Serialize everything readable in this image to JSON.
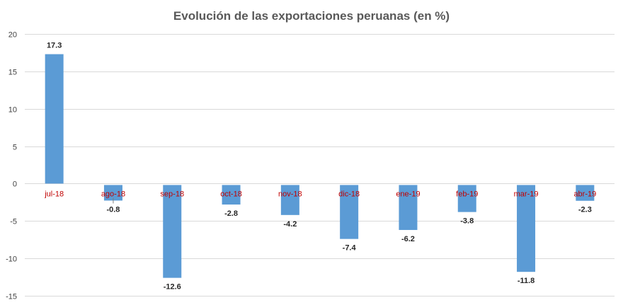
{
  "chart_data": {
    "type": "bar",
    "title": "Evolución de las exportaciones peruanas (en %)",
    "xlabel": "",
    "ylabel": "",
    "categories": [
      "jul-18",
      "ago-18",
      "sep-18",
      "oct-18",
      "nov-18",
      "dic-18",
      "ene-19",
      "feb-19",
      "mar-19",
      "abr-19"
    ],
    "values": [
      17.3,
      -0.8,
      -12.6,
      -2.8,
      -4.2,
      -7.4,
      -6.2,
      -3.8,
      -11.8,
      -2.3
    ],
    "data_labels": [
      "17.3",
      "-0.8",
      "-12.6",
      "-2.8",
      "-4.2",
      "-7.4",
      "-6.2",
      "-3.8",
      "-11.8",
      "-2.3"
    ],
    "ylim": [
      -15,
      20
    ],
    "yticks": [
      20,
      15,
      10,
      5,
      0,
      -5,
      -10,
      -15
    ],
    "grid": true,
    "legend": "none",
    "colors": {
      "bar": "#5b9bd5",
      "category_label": "#c00000",
      "title": "#595959"
    }
  }
}
